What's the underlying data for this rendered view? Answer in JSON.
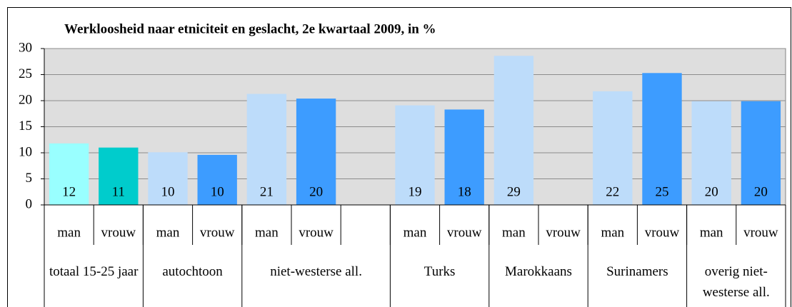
{
  "chart_data": {
    "type": "bar",
    "title": "Werkloosheid naar etniciteit en geslacht, 2e kwartaal 2009, in %",
    "categories": [
      "man",
      "vrouw",
      "man",
      "vrouw",
      "man",
      "vrouw",
      null,
      "man",
      "vrouw",
      "man",
      "vrouw",
      "man",
      "vrouw",
      "man",
      "vrouw"
    ],
    "groups": [
      {
        "name": "totaal 15-25 jaar",
        "size": 2
      },
      {
        "name": "autochtoon",
        "size": 2
      },
      {
        "name": "niet-westerse all.",
        "size": 3
      },
      {
        "name": "Turks",
        "size": 2
      },
      {
        "name": "Marokkaans",
        "size": 2
      },
      {
        "name": "Surinamers",
        "size": 2
      },
      {
        "name": "overig niet-westerse all.",
        "size": 2
      }
    ],
    "values": [
      11.8,
      11.0,
      10.1,
      9.6,
      21.3,
      20.4,
      null,
      19.1,
      18.3,
      28.6,
      null,
      21.8,
      25.3,
      19.9,
      19.9
    ],
    "value_labels": [
      "12",
      "11",
      "10",
      "10",
      "21",
      "20",
      null,
      "19",
      "18",
      "29",
      null,
      "22",
      "25",
      "20",
      "20"
    ],
    "colors": [
      "#99ffff",
      "#00cccc",
      "#bddcfa",
      "#3d9cff",
      "#bddcfa",
      "#3d9cff",
      null,
      "#bddcfa",
      "#3d9cff",
      "#bddcfa",
      "#3d9cff",
      "#bddcfa",
      "#3d9cff",
      "#bddcfa",
      "#3d9cff"
    ],
    "ylim": [
      0,
      30
    ],
    "yticks": [
      0,
      5,
      10,
      15,
      20,
      25,
      30
    ],
    "grid": true
  }
}
